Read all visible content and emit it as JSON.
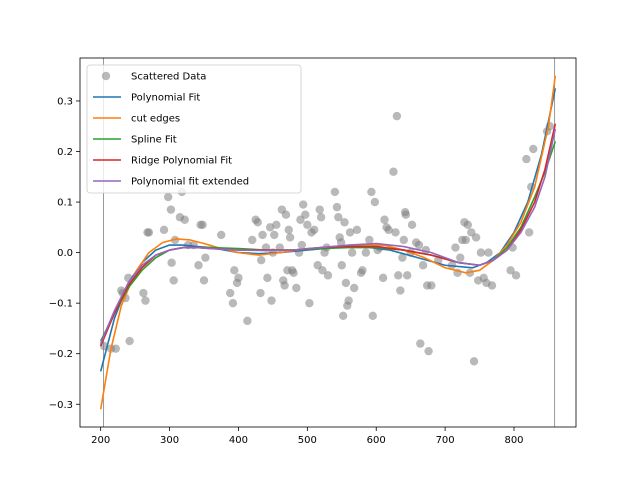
{
  "chart_data": {
    "type": "scatter",
    "title": "",
    "xlabel": "",
    "ylabel": "",
    "xlim": [
      170,
      890
    ],
    "ylim": [
      -0.345,
      0.385
    ],
    "x_ticks": [
      200,
      300,
      400,
      500,
      600,
      700,
      800
    ],
    "y_ticks": [
      -0.3,
      -0.2,
      -0.1,
      0.0,
      0.1,
      0.2,
      0.3
    ],
    "x_tick_labels": [
      "200",
      "300",
      "400",
      "500",
      "600",
      "700",
      "800"
    ],
    "y_tick_labels": [
      "−0.3",
      "−0.2",
      "−0.1",
      "0.0",
      "0.1",
      "0.2",
      "0.3"
    ],
    "grid": false,
    "legend_position": "top-left",
    "vertical_lines": [
      204,
      859
    ],
    "scatter": {
      "name": "Scattered Data",
      "color": "#808080",
      "points": [
        [
          205,
          -0.185
        ],
        [
          215,
          -0.19
        ],
        [
          222,
          -0.19
        ],
        [
          230,
          -0.075
        ],
        [
          232,
          -0.08
        ],
        [
          236,
          -0.09
        ],
        [
          240,
          -0.05
        ],
        [
          242,
          -0.175
        ],
        [
          262,
          -0.08
        ],
        [
          265,
          -0.095
        ],
        [
          268,
          0.04
        ],
        [
          270,
          0.04
        ],
        [
          292,
          0.045
        ],
        [
          298,
          0.11
        ],
        [
          302,
          0.085
        ],
        [
          303,
          -0.02
        ],
        [
          306,
          -0.055
        ],
        [
          308,
          0.025
        ],
        [
          315,
          0.07
        ],
        [
          318,
          0.12
        ],
        [
          322,
          0.065
        ],
        [
          327,
          0.015
        ],
        [
          335,
          0.015
        ],
        [
          342,
          -0.025
        ],
        [
          345,
          0.055
        ],
        [
          348,
          0.055
        ],
        [
          350,
          -0.055
        ],
        [
          352,
          -0.01
        ],
        [
          375,
          0.035
        ],
        [
          388,
          -0.08
        ],
        [
          392,
          -0.1
        ],
        [
          394,
          -0.035
        ],
        [
          398,
          -0.06
        ],
        [
          400,
          -0.05
        ],
        [
          413,
          -0.135
        ],
        [
          420,
          0.025
        ],
        [
          425,
          0.065
        ],
        [
          428,
          0.06
        ],
        [
          432,
          -0.08
        ],
        [
          433,
          -0.015
        ],
        [
          435,
          0.035
        ],
        [
          440,
          0.01
        ],
        [
          442,
          -0.05
        ],
        [
          446,
          0.05
        ],
        [
          448,
          -0.095
        ],
        [
          450,
          0.0
        ],
        [
          452,
          0.035
        ],
        [
          455,
          0.055
        ],
        [
          460,
          0.01
        ],
        [
          463,
          0.085
        ],
        [
          465,
          -0.055
        ],
        [
          467,
          -0.065
        ],
        [
          469,
          0.075
        ],
        [
          471,
          -0.035
        ],
        [
          473,
          0.045
        ],
        [
          475,
          0.03
        ],
        [
          478,
          -0.035
        ],
        [
          480,
          -0.04
        ],
        [
          484,
          -0.07
        ],
        [
          488,
          0.0
        ],
        [
          490,
          0.065
        ],
        [
          492,
          0.015
        ],
        [
          494,
          0.095
        ],
        [
          497,
          0.075
        ],
        [
          500,
          0.055
        ],
        [
          503,
          -0.1
        ],
        [
          506,
          0.04
        ],
        [
          510,
          0.045
        ],
        [
          515,
          -0.025
        ],
        [
          518,
          0.085
        ],
        [
          520,
          0.07
        ],
        [
          522,
          -0.035
        ],
        [
          525,
          0.0
        ],
        [
          528,
          0.01
        ],
        [
          530,
          -0.045
        ],
        [
          540,
          0.12
        ],
        [
          543,
          0.09
        ],
        [
          545,
          0.07
        ],
        [
          547,
          0.03
        ],
        [
          549,
          0.02
        ],
        [
          550,
          -0.025
        ],
        [
          552,
          -0.125
        ],
        [
          554,
          0.06
        ],
        [
          556,
          -0.06
        ],
        [
          558,
          -0.105
        ],
        [
          560,
          -0.095
        ],
        [
          562,
          0.04
        ],
        [
          565,
          0.0
        ],
        [
          568,
          -0.07
        ],
        [
          572,
          0.045
        ],
        [
          578,
          -0.04
        ],
        [
          580,
          -0.035
        ],
        [
          585,
          0.0
        ],
        [
          590,
          0.025
        ],
        [
          593,
          0.12
        ],
        [
          595,
          -0.125
        ],
        [
          598,
          0.1
        ],
        [
          602,
          0.005
        ],
        [
          605,
          0.01
        ],
        [
          610,
          -0.05
        ],
        [
          612,
          0.065
        ],
        [
          615,
          0.05
        ],
        [
          618,
          0.045
        ],
        [
          625,
          0.16
        ],
        [
          628,
          0.04
        ],
        [
          630,
          0.27
        ],
        [
          632,
          -0.045
        ],
        [
          635,
          -0.075
        ],
        [
          638,
          -0.01
        ],
        [
          640,
          0.025
        ],
        [
          642,
          0.08
        ],
        [
          643,
          0.075
        ],
        [
          645,
          -0.045
        ],
        [
          650,
          0.0
        ],
        [
          652,
          0.055
        ],
        [
          658,
          0.02
        ],
        [
          662,
          0.015
        ],
        [
          664,
          -0.18
        ],
        [
          668,
          -0.025
        ],
        [
          672,
          0.005
        ],
        [
          674,
          -0.065
        ],
        [
          676,
          -0.195
        ],
        [
          680,
          -0.065
        ],
        [
          690,
          -0.015
        ],
        [
          710,
          -0.025
        ],
        [
          715,
          0.01
        ],
        [
          718,
          -0.04
        ],
        [
          722,
          -0.01
        ],
        [
          725,
          0.025
        ],
        [
          728,
          0.06
        ],
        [
          730,
          0.025
        ],
        [
          733,
          0.055
        ],
        [
          736,
          -0.04
        ],
        [
          738,
          0.04
        ],
        [
          742,
          -0.215
        ],
        [
          745,
          0.03
        ],
        [
          748,
          -0.055
        ],
        [
          752,
          0.0
        ],
        [
          756,
          -0.05
        ],
        [
          760,
          -0.06
        ],
        [
          763,
          0.0
        ],
        [
          768,
          -0.065
        ],
        [
          795,
          -0.035
        ],
        [
          798,
          0.01
        ],
        [
          803,
          -0.045
        ],
        [
          818,
          0.185
        ],
        [
          822,
          0.04
        ],
        [
          825,
          0.13
        ],
        [
          828,
          0.205
        ],
        [
          848,
          0.24
        ],
        [
          852,
          0.25
        ]
      ]
    },
    "series": [
      {
        "name": "Polynomial Fit",
        "color": "#1f77b4",
        "x": [
          200,
          220,
          240,
          260,
          280,
          300,
          320,
          340,
          360,
          380,
          400,
          430,
          460,
          500,
          540,
          580,
          620,
          660,
          700,
          740,
          760,
          780,
          800,
          820,
          840,
          860
        ],
        "y": [
          -0.235,
          -0.13,
          -0.06,
          -0.02,
          0.005,
          0.015,
          0.015,
          0.012,
          0.01,
          0.005,
          0.0,
          -0.002,
          0.0,
          0.005,
          0.01,
          0.012,
          0.005,
          -0.01,
          -0.025,
          -0.03,
          -0.02,
          0.0,
          0.04,
          0.1,
          0.195,
          0.325
        ]
      },
      {
        "name": "cut edges",
        "color": "#ff7f0e",
        "x": [
          200,
          215,
          230,
          250,
          270,
          290,
          310,
          330,
          350,
          370,
          400,
          430,
          460,
          500,
          540,
          580,
          610,
          640,
          670,
          700,
          730,
          750,
          770,
          790,
          810,
          830,
          850,
          860
        ],
        "y": [
          -0.31,
          -0.19,
          -0.105,
          -0.04,
          0.0,
          0.02,
          0.027,
          0.025,
          0.018,
          0.01,
          0.0,
          -0.005,
          0.0,
          0.008,
          0.012,
          0.015,
          0.015,
          0.005,
          -0.01,
          -0.03,
          -0.04,
          -0.035,
          -0.015,
          0.015,
          0.06,
          0.13,
          0.25,
          0.35
        ]
      },
      {
        "name": "Spline Fit",
        "color": "#2ca02c",
        "x": [
          200,
          220,
          240,
          260,
          280,
          300,
          320,
          340,
          360,
          400,
          440,
          480,
          520,
          560,
          600,
          640,
          680,
          720,
          750,
          770,
          790,
          810,
          830,
          845,
          860
        ],
        "y": [
          -0.175,
          -0.12,
          -0.07,
          -0.035,
          -0.01,
          0.005,
          0.01,
          0.01,
          0.01,
          0.008,
          0.005,
          0.005,
          0.008,
          0.01,
          0.01,
          0.005,
          -0.005,
          -0.02,
          -0.025,
          -0.015,
          0.01,
          0.05,
          0.11,
          0.16,
          0.22
        ]
      },
      {
        "name": "Ridge Polynomial Fit",
        "color": "#d62728",
        "x": [
          200,
          220,
          240,
          260,
          280,
          300,
          320,
          340,
          360,
          400,
          440,
          480,
          520,
          560,
          600,
          640,
          680,
          720,
          750,
          770,
          790,
          810,
          830,
          845,
          860
        ],
        "y": [
          -0.185,
          -0.12,
          -0.065,
          -0.03,
          -0.005,
          0.005,
          0.01,
          0.01,
          0.008,
          0.005,
          0.005,
          0.005,
          0.01,
          0.012,
          0.012,
          0.005,
          -0.005,
          -0.02,
          -0.025,
          -0.015,
          0.005,
          0.045,
          0.1,
          0.165,
          0.255
        ]
      },
      {
        "name": "Polynomial fit extended",
        "color": "#9467bd",
        "x": [
          200,
          220,
          240,
          260,
          280,
          300,
          320,
          340,
          360,
          400,
          440,
          480,
          520,
          560,
          600,
          640,
          680,
          720,
          750,
          770,
          790,
          810,
          830,
          845,
          860
        ],
        "y": [
          -0.18,
          -0.115,
          -0.06,
          -0.025,
          -0.005,
          0.005,
          0.01,
          0.01,
          0.008,
          0.005,
          0.004,
          0.005,
          0.01,
          0.015,
          0.018,
          0.012,
          0.0,
          -0.02,
          -0.025,
          -0.015,
          0.005,
          0.04,
          0.09,
          0.15,
          0.245
        ]
      }
    ]
  }
}
